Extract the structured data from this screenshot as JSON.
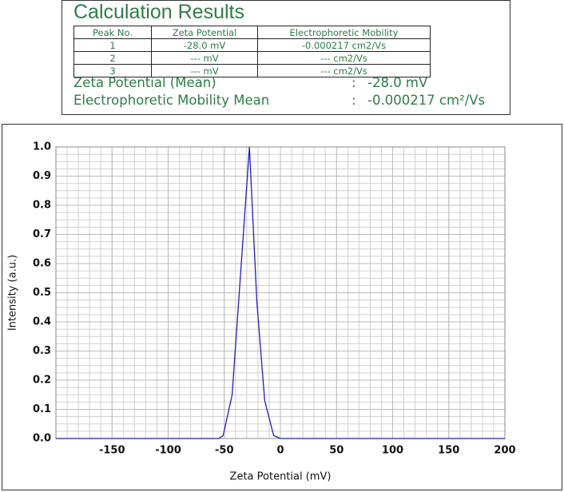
{
  "results": {
    "title": "Calculation Results",
    "table": {
      "header": [
        "Peak No.",
        "Zeta Potential",
        "Electrophoretic Mobility"
      ],
      "rows": [
        [
          "1",
          "-28.0 mV",
          "-0.000217 cm2/Vs"
        ],
        [
          "2",
          "--- mV",
          "--- cm2/Vs"
        ],
        [
          "3",
          "--- mV",
          "--- cm2/Vs"
        ]
      ]
    },
    "summary": [
      {
        "label": "Zeta Potential (Mean)",
        "separator": ":",
        "value": "-28.0 mV"
      },
      {
        "label": "Electrophoretic Mobility Mean",
        "separator": ":",
        "value": "-0.000217 cm²/Vs"
      }
    ]
  },
  "chart_data": {
    "type": "line",
    "xlabel": "Zeta Potential (mV)",
    "ylabel": "Intensity (a.u.)",
    "x": [
      -200,
      -55,
      -51,
      -43,
      -27.6,
      -21,
      -14,
      -6,
      0,
      200
    ],
    "series": [
      {
        "color": "#1f1fbf",
        "values": [
          0,
          0,
          0.01,
          0.15,
          1.0,
          0.47,
          0.13,
          0.01,
          0,
          0
        ]
      }
    ],
    "xlim": [
      -200,
      200
    ],
    "xticks": [
      -150,
      -100,
      -50,
      0,
      50,
      100,
      150,
      200
    ],
    "ylim": [
      0,
      1
    ],
    "yticks": [
      {
        "value": 0,
        "label": "0.0"
      },
      0.1,
      0.2,
      0.3,
      0.4,
      0.5,
      0.6,
      0.7,
      0.8,
      0.9,
      {
        "value": 1,
        "label": "1.0"
      }
    ],
    "grid": true
  }
}
